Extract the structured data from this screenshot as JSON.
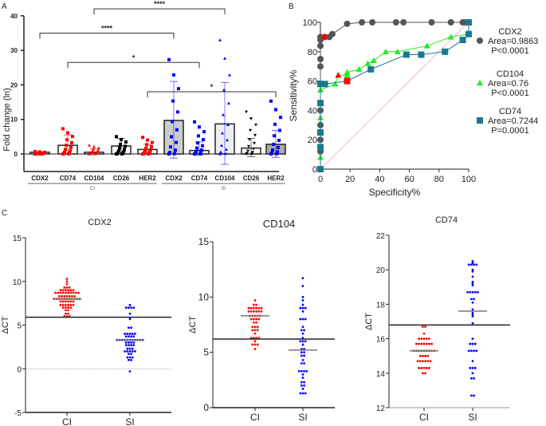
{
  "panel_labels": [
    "A",
    "B",
    "C"
  ],
  "chart_data": [
    {
      "type": "bar",
      "panel": "A",
      "ylabel": "Fold change (ln)",
      "ylim": [
        -5,
        40
      ],
      "yticks": [
        0,
        10,
        20,
        30,
        40
      ],
      "categories": [
        "CDX2",
        "CD74",
        "CD104",
        "CD26",
        "HER2",
        "CDX2",
        "CD74",
        "CD104",
        "CD26",
        "HER2"
      ],
      "groups": [
        {
          "label": "CI",
          "indices": [
            0,
            1,
            2,
            3,
            4
          ]
        },
        {
          "label": "SI",
          "indices": [
            5,
            6,
            7,
            8,
            9
          ]
        }
      ],
      "values": [
        0.5,
        2.5,
        0.5,
        2.3,
        1.3,
        9.7,
        1.0,
        8.7,
        1.7,
        2.8
      ],
      "sd_upper": [
        0.6,
        5.5,
        1.5,
        4.5,
        2.8,
        21,
        3.5,
        20.7,
        4.5,
        6.8
      ],
      "sd_lower": [
        0.3,
        0,
        0,
        0.5,
        0.3,
        -1.2,
        -0.3,
        -3,
        -0.8,
        -1
      ],
      "point_max": [
        0.7,
        7.3,
        2.5,
        5,
        4.8,
        27.3,
        9.3,
        33,
        12.2,
        15.3
      ],
      "colors": [
        "#ff0000",
        "#ff0000",
        "#ff0000",
        "#000000",
        "#ff0000",
        "#0000ff",
        "#0000ff",
        "#0000ff",
        "#000000",
        "#0000ff"
      ],
      "bar_fills": [
        "#ffffff",
        "#ffffff",
        "#ffffff",
        "#ffffff",
        "#ffffff",
        "#cccccc",
        "#ffffff",
        "#eeeeee",
        "#ffffff",
        "#aaaaaa"
      ],
      "significance": [
        {
          "from": 2,
          "to": 7,
          "label": "****",
          "y": 42
        },
        {
          "from": 0,
          "to": 5,
          "label": "****",
          "y": 35
        },
        {
          "from": 1,
          "to": 6,
          "label": "*",
          "y": 26.5
        },
        {
          "from": 4,
          "to": 9,
          "label": "*",
          "y": 18
        }
      ]
    },
    {
      "type": "line",
      "panel": "B",
      "xlabel": "Specificity%",
      "ylabel": "Sensitivity%",
      "xlim": [
        0,
        100
      ],
      "ylim": [
        0,
        100
      ],
      "ticks": [
        0,
        20,
        40,
        60,
        80,
        100
      ],
      "series": [
        {
          "name": "CDX2",
          "area": "Area=0.9863",
          "p": "P<0.0001",
          "color": "#555555",
          "marker": "circle",
          "x": [
            0,
            0,
            0,
            0,
            0,
            0,
            0,
            0,
            0,
            3,
            6,
            8,
            18,
            28,
            35,
            51,
            56,
            75,
            88,
            96,
            98,
            100
          ],
          "y": [
            12,
            20,
            30,
            40,
            70,
            75,
            84,
            88,
            90,
            90,
            90,
            92,
            99,
            100,
            100,
            100,
            100,
            100,
            100,
            100,
            100,
            100
          ],
          "highlight": 9
        },
        {
          "name": "CD104",
          "area": "Area=0.76",
          "p": "P<0.0001",
          "color": "#22ee22",
          "marker": "triangle",
          "x": [
            0,
            0,
            0,
            10,
            12,
            18,
            18,
            26,
            32,
            36,
            44,
            52,
            72,
            88,
            100
          ],
          "y": [
            8,
            35,
            54,
            58,
            64,
            64,
            66,
            68,
            72,
            74,
            80,
            80,
            84,
            90,
            92
          ],
          "highlight": 4
        },
        {
          "name": "CD74",
          "area": "Area=0.7244",
          "p": "P=0.0001",
          "color": "#1a7a90",
          "marker": "square",
          "x": [
            0,
            0,
            0,
            0,
            0,
            3,
            18,
            34,
            58,
            68,
            84,
            96,
            100,
            100
          ],
          "y": [
            0,
            15,
            25,
            45,
            58,
            58,
            60,
            68,
            78,
            78,
            80,
            88,
            92,
            100
          ],
          "highlight": 6
        }
      ]
    },
    {
      "type": "scatter",
      "panel": "C",
      "title": "CDX2",
      "ylabel": "ΔCT",
      "ylim": [
        -5,
        15
      ],
      "yticks": [
        -5,
        0,
        5,
        10,
        15
      ],
      "categories": [
        "CI",
        "SI"
      ],
      "cutoff": 5.9,
      "zero_line": true,
      "series": [
        {
          "name": "CI",
          "color": "#ff0000",
          "median": 8,
          "values": [
            10.3,
            10,
            9.7,
            9.3,
            9.3,
            9.3,
            9,
            9,
            9,
            9,
            9,
            9,
            8.7,
            8.7,
            8.7,
            8.7,
            8.7,
            8.7,
            8.7,
            8.7,
            8.7,
            8.7,
            8.3,
            8.3,
            8.3,
            8.3,
            8.3,
            8.3,
            8.3,
            8,
            8,
            8,
            8,
            8,
            8,
            8,
            8,
            8,
            8,
            8,
            7.7,
            7.7,
            7.7,
            7.7,
            7.7,
            7.7,
            7.3,
            7.3,
            7.3,
            7.3,
            7.3,
            7.3,
            7,
            7,
            7,
            7,
            6.7,
            6.7,
            6.3,
            6.3,
            6,
            6,
            6
          ]
        },
        {
          "name": "SI",
          "color": "#0000ff",
          "median": 3.3,
          "values": [
            7.3,
            7,
            7,
            7,
            7,
            6.3,
            5.7,
            4.7,
            4.7,
            4,
            4,
            4,
            4,
            4,
            3.7,
            3.7,
            3.7,
            3.7,
            3.3,
            3.3,
            3.3,
            3.3,
            3.3,
            3.3,
            3.3,
            3.3,
            3.3,
            3.3,
            3.3,
            3,
            3,
            3,
            3,
            2.7,
            2.7,
            2.7,
            2.7,
            2.3,
            2.3,
            2.3,
            2,
            2,
            2,
            2,
            2,
            1.7,
            1.7,
            1.3,
            1.3,
            1.3,
            1,
            1,
            -0.3
          ]
        }
      ]
    },
    {
      "type": "scatter",
      "panel": "C",
      "title": "CD104",
      "ylabel": "ΔCT",
      "ylim": [
        0,
        15
      ],
      "yticks": [
        0,
        5,
        10,
        15
      ],
      "categories": [
        "CI",
        "SI"
      ],
      "cutoff": 6.2,
      "series": [
        {
          "name": "CI",
          "color": "#ff0000",
          "median": 8.3,
          "values": [
            9.7,
            9.3,
            9.3,
            9,
            9,
            9,
            9,
            9,
            9,
            8.7,
            8.7,
            8.7,
            8.7,
            8.7,
            8.7,
            8.3,
            8.3,
            8.3,
            8.3,
            8.3,
            8,
            8,
            8,
            8,
            7.7,
            7.7,
            7.3,
            7.3,
            7.3,
            7,
            7,
            7,
            6.7,
            6.3,
            6.3,
            6.3,
            6.3,
            6,
            5.7,
            5.7,
            5.7,
            5.3
          ]
        },
        {
          "name": "SI",
          "color": "#0000ff",
          "median": 5.2,
          "values": [
            11.7,
            11,
            10,
            9.7,
            9.3,
            9,
            9,
            9,
            8.7,
            8,
            8,
            8,
            7.3,
            7,
            7,
            6.7,
            6.3,
            6,
            6,
            6,
            5.7,
            5.3,
            5.3,
            5,
            5,
            4.7,
            4.7,
            4.3,
            4,
            4,
            3.3,
            3.3,
            3.3,
            3.3,
            3,
            2.7,
            2.3,
            2.3,
            2,
            2,
            1.7,
            1.3,
            1.3,
            1.3
          ]
        }
      ]
    },
    {
      "type": "scatter",
      "panel": "C",
      "title": "CD74",
      "ylabel": "ΔCT",
      "ylim": [
        12,
        22
      ],
      "yticks": [
        12,
        14,
        16,
        18,
        20,
        22
      ],
      "categories": [
        "CI",
        "SI"
      ],
      "cutoff": 16.8,
      "series": [
        {
          "name": "CI",
          "color": "#ff0000",
          "median": 15.3,
          "values": [
            16.7,
            16.7,
            16.3,
            16,
            16,
            16,
            16,
            16,
            15.7,
            15.7,
            15.7,
            15.7,
            15.7,
            15.7,
            15.7,
            15.3,
            15.3,
            15.3,
            15.3,
            15.3,
            15.3,
            15.3,
            15.3,
            15.3,
            15,
            15,
            15,
            15,
            14.7,
            14.7,
            14.7,
            14.7,
            14.7,
            14.7,
            14.3,
            14.3,
            14.3,
            14.3,
            14.3,
            14,
            14
          ]
        },
        {
          "name": "SI",
          "color": "#0000ff",
          "median": 17.6,
          "values": [
            20.5,
            20.4,
            20.3,
            20.3,
            20.3,
            20.3,
            20,
            19.9,
            19.6,
            19.3,
            19.2,
            19.1,
            18.7,
            18.7,
            18.7,
            18.7,
            18.7,
            18.3,
            18.3,
            18.1,
            17.7,
            17.5,
            17.4,
            17.3,
            16.9,
            16,
            15.7,
            15.7,
            15.7,
            15.3,
            15.3,
            15.3,
            15.3,
            14.7,
            14.3,
            14.3,
            14.3,
            14,
            13.7,
            13.7,
            12.7,
            12.7
          ]
        }
      ]
    }
  ]
}
